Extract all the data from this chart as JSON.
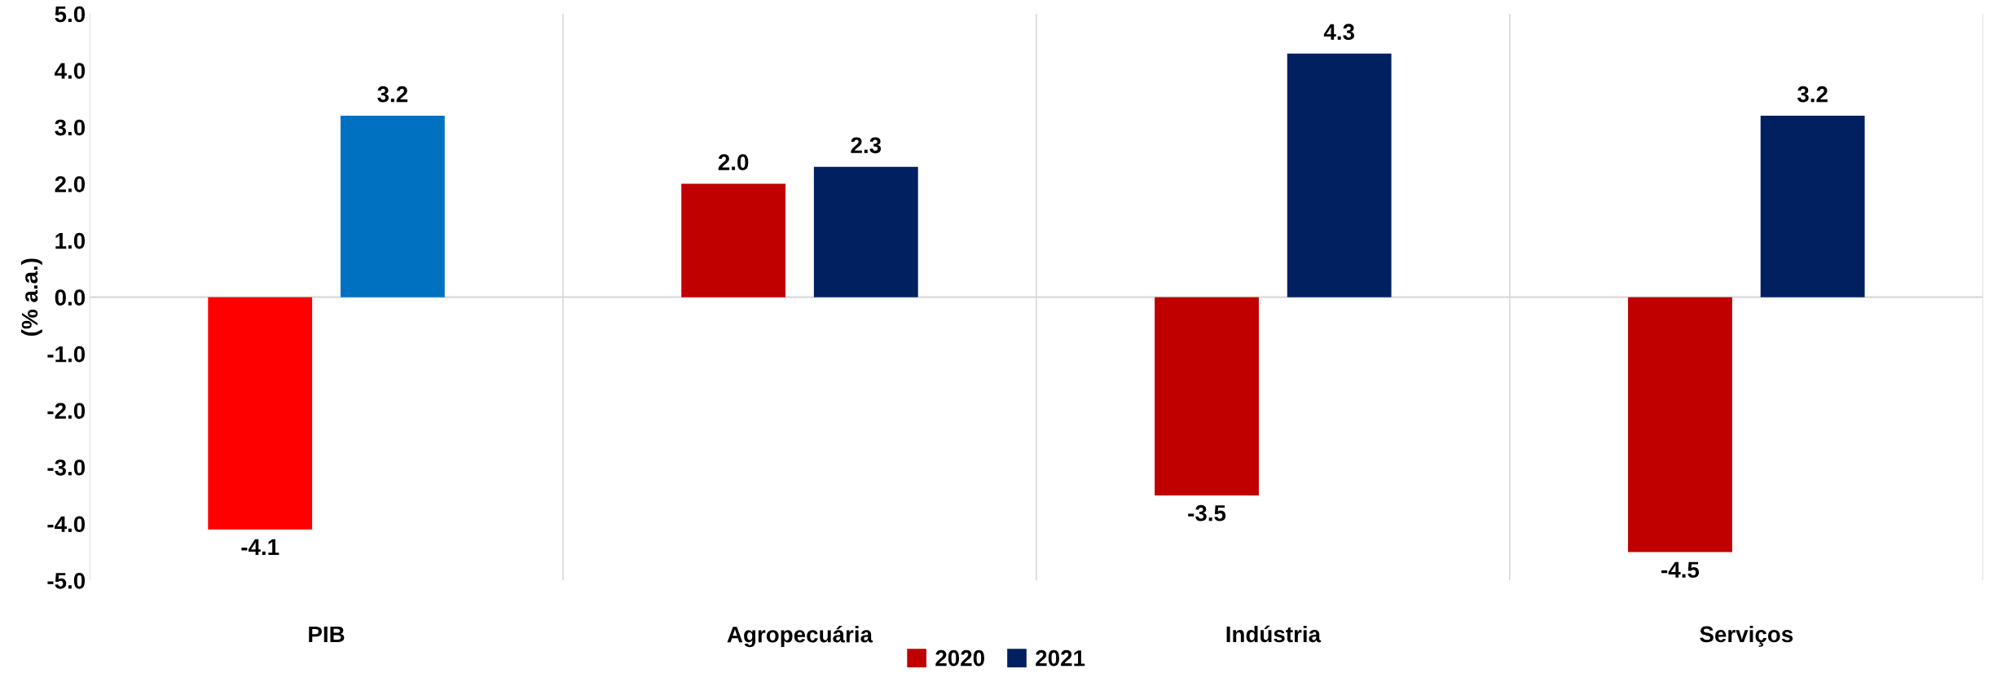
{
  "chart_data": {
    "type": "bar",
    "ylabel": "(% a.a.)",
    "categories": [
      "PIB",
      "Agropecuária",
      "Indústria",
      "Serviços"
    ],
    "series": [
      {
        "name": "2020",
        "color": "#c00000",
        "colors": [
          "#ff0000",
          "#c00000",
          "#c00000",
          "#c00000"
        ],
        "values": [
          -4.1,
          2.0,
          -3.5,
          -4.5
        ],
        "value_labels": [
          "-4.1",
          "2.0",
          "-3.5",
          "-4.5"
        ]
      },
      {
        "name": "2021",
        "color": "#002060",
        "colors": [
          "#0070c0",
          "#002060",
          "#002060",
          "#002060"
        ],
        "values": [
          3.2,
          2.3,
          4.3,
          3.2
        ],
        "value_labels": [
          "3.2",
          "2.3",
          "4.3",
          "3.2"
        ]
      }
    ],
    "ylim": [
      -5,
      5
    ],
    "yticks": [
      {
        "value": -5,
        "label": "-5.0"
      },
      {
        "value": -4,
        "label": "-4.0"
      },
      {
        "value": -3,
        "label": "-3.0"
      },
      {
        "value": -2,
        "label": "-2.0"
      },
      {
        "value": -1,
        "label": "-1.0"
      },
      {
        "value": 0,
        "label": "0.0"
      },
      {
        "value": 1,
        "label": "1.0"
      },
      {
        "value": 2,
        "label": "2.0"
      },
      {
        "value": 3,
        "label": "3.0"
      },
      {
        "value": 4,
        "label": "4.0"
      },
      {
        "value": 5,
        "label": "5.0"
      }
    ],
    "grid": "x",
    "legend": "bottom"
  }
}
